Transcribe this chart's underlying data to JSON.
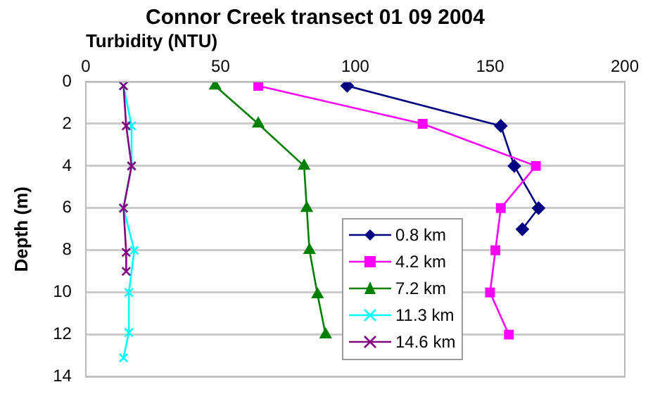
{
  "chart_data": {
    "type": "line",
    "title": "Connor Creek transect 01 09 2004",
    "xlabel": "Turbidity (NTU)",
    "ylabel": "Depth (m)",
    "xlim": [
      0,
      200
    ],
    "xticks": [
      0,
      50,
      100,
      150,
      200
    ],
    "ylim": [
      14,
      0
    ],
    "yticks": [
      0,
      2,
      4,
      6,
      8,
      10,
      12,
      14
    ],
    "grid": "y",
    "legend": "bottom right",
    "line_style": "solid",
    "series": [
      {
        "name": "0.8 km",
        "color": "#000080",
        "marker": "diamond",
        "x": [
          97,
          154,
          159,
          168,
          162
        ],
        "values": [
          0.2,
          2.1,
          4,
          6,
          7
        ]
      },
      {
        "name": "4.2 km",
        "color": "#ff00ff",
        "marker": "square",
        "x": [
          64,
          125,
          167,
          154,
          152,
          150,
          157
        ],
        "values": [
          0.2,
          2,
          4,
          6,
          8,
          10,
          12
        ]
      },
      {
        "name": "7.2 km",
        "color": "#008000",
        "marker": "triangle",
        "x": [
          48,
          64,
          81,
          82,
          83,
          86,
          89
        ],
        "values": [
          0.2,
          2,
          4,
          6,
          8,
          10.1,
          12
        ]
      },
      {
        "name": "11.3 km",
        "color": "#00ffff",
        "marker": "cross",
        "x": [
          14,
          17,
          17,
          14,
          18,
          16,
          16,
          14
        ],
        "values": [
          0.2,
          2.1,
          4,
          6,
          8,
          10,
          11.9,
          13.1
        ]
      },
      {
        "name": "14.6 km",
        "color": "#800080",
        "marker": "cross",
        "x": [
          14,
          15,
          17,
          14,
          15,
          15
        ],
        "values": [
          0.2,
          2.1,
          4,
          6,
          8.1,
          9
        ]
      }
    ]
  }
}
